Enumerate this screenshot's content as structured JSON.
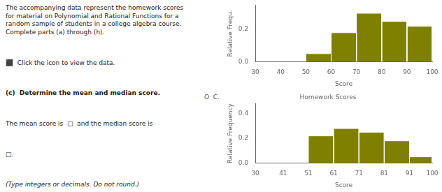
{
  "chart_data": [
    {
      "type": "histogram",
      "xlabel": "Score",
      "ylabel": "Relative Frequ.",
      "bins": [
        30,
        40,
        50,
        60,
        70,
        80,
        90,
        100
      ],
      "values": [
        0.0,
        0.0,
        0.05,
        0.18,
        0.3,
        0.25,
        0.22
      ],
      "color": "#808000",
      "xlim": [
        30,
        100
      ],
      "ylim": [
        0,
        0.35
      ],
      "xticks": [
        30,
        40,
        50,
        60,
        70,
        80,
        90,
        100
      ],
      "yticks": [
        {
          "value": 0,
          "label": "0.0"
        },
        0.2
      ],
      "grid": false,
      "annotations": [
        "The accompanying data represent the homework scores\nfor material on Polynomial and Rational Functions for a\nrandom sample of students in a college algebra course.\nComplete parts (a) through (h).",
        "⬛  Click the icon to view the data.",
        "(c)  Determine the mean and median score.",
        "The mean score is  □  and the median score is",
        "□.",
        "(Type integers or decimals. Do not round.)"
      ]
    },
    {
      "type": "histogram",
      "title": "Homework Scores",
      "xlabel": "Score",
      "ylabel": "Relative Frequency",
      "bins": [
        30,
        41,
        51,
        61,
        71,
        81,
        91,
        100
      ],
      "values": [
        0.0,
        0.0,
        0.22,
        0.28,
        0.25,
        0.18,
        0.05
      ],
      "color": "#808000",
      "xlim": [
        30,
        100
      ],
      "ylim": [
        0,
        0.48
      ],
      "xticks": [
        30,
        41,
        51,
        61,
        71,
        81,
        91,
        100
      ],
      "yticks": [
        {
          "value": 0,
          "label": "0.0"
        },
        0.2,
        0.4
      ],
      "grid": false,
      "annotations": [
        "O  C."
      ]
    }
  ]
}
